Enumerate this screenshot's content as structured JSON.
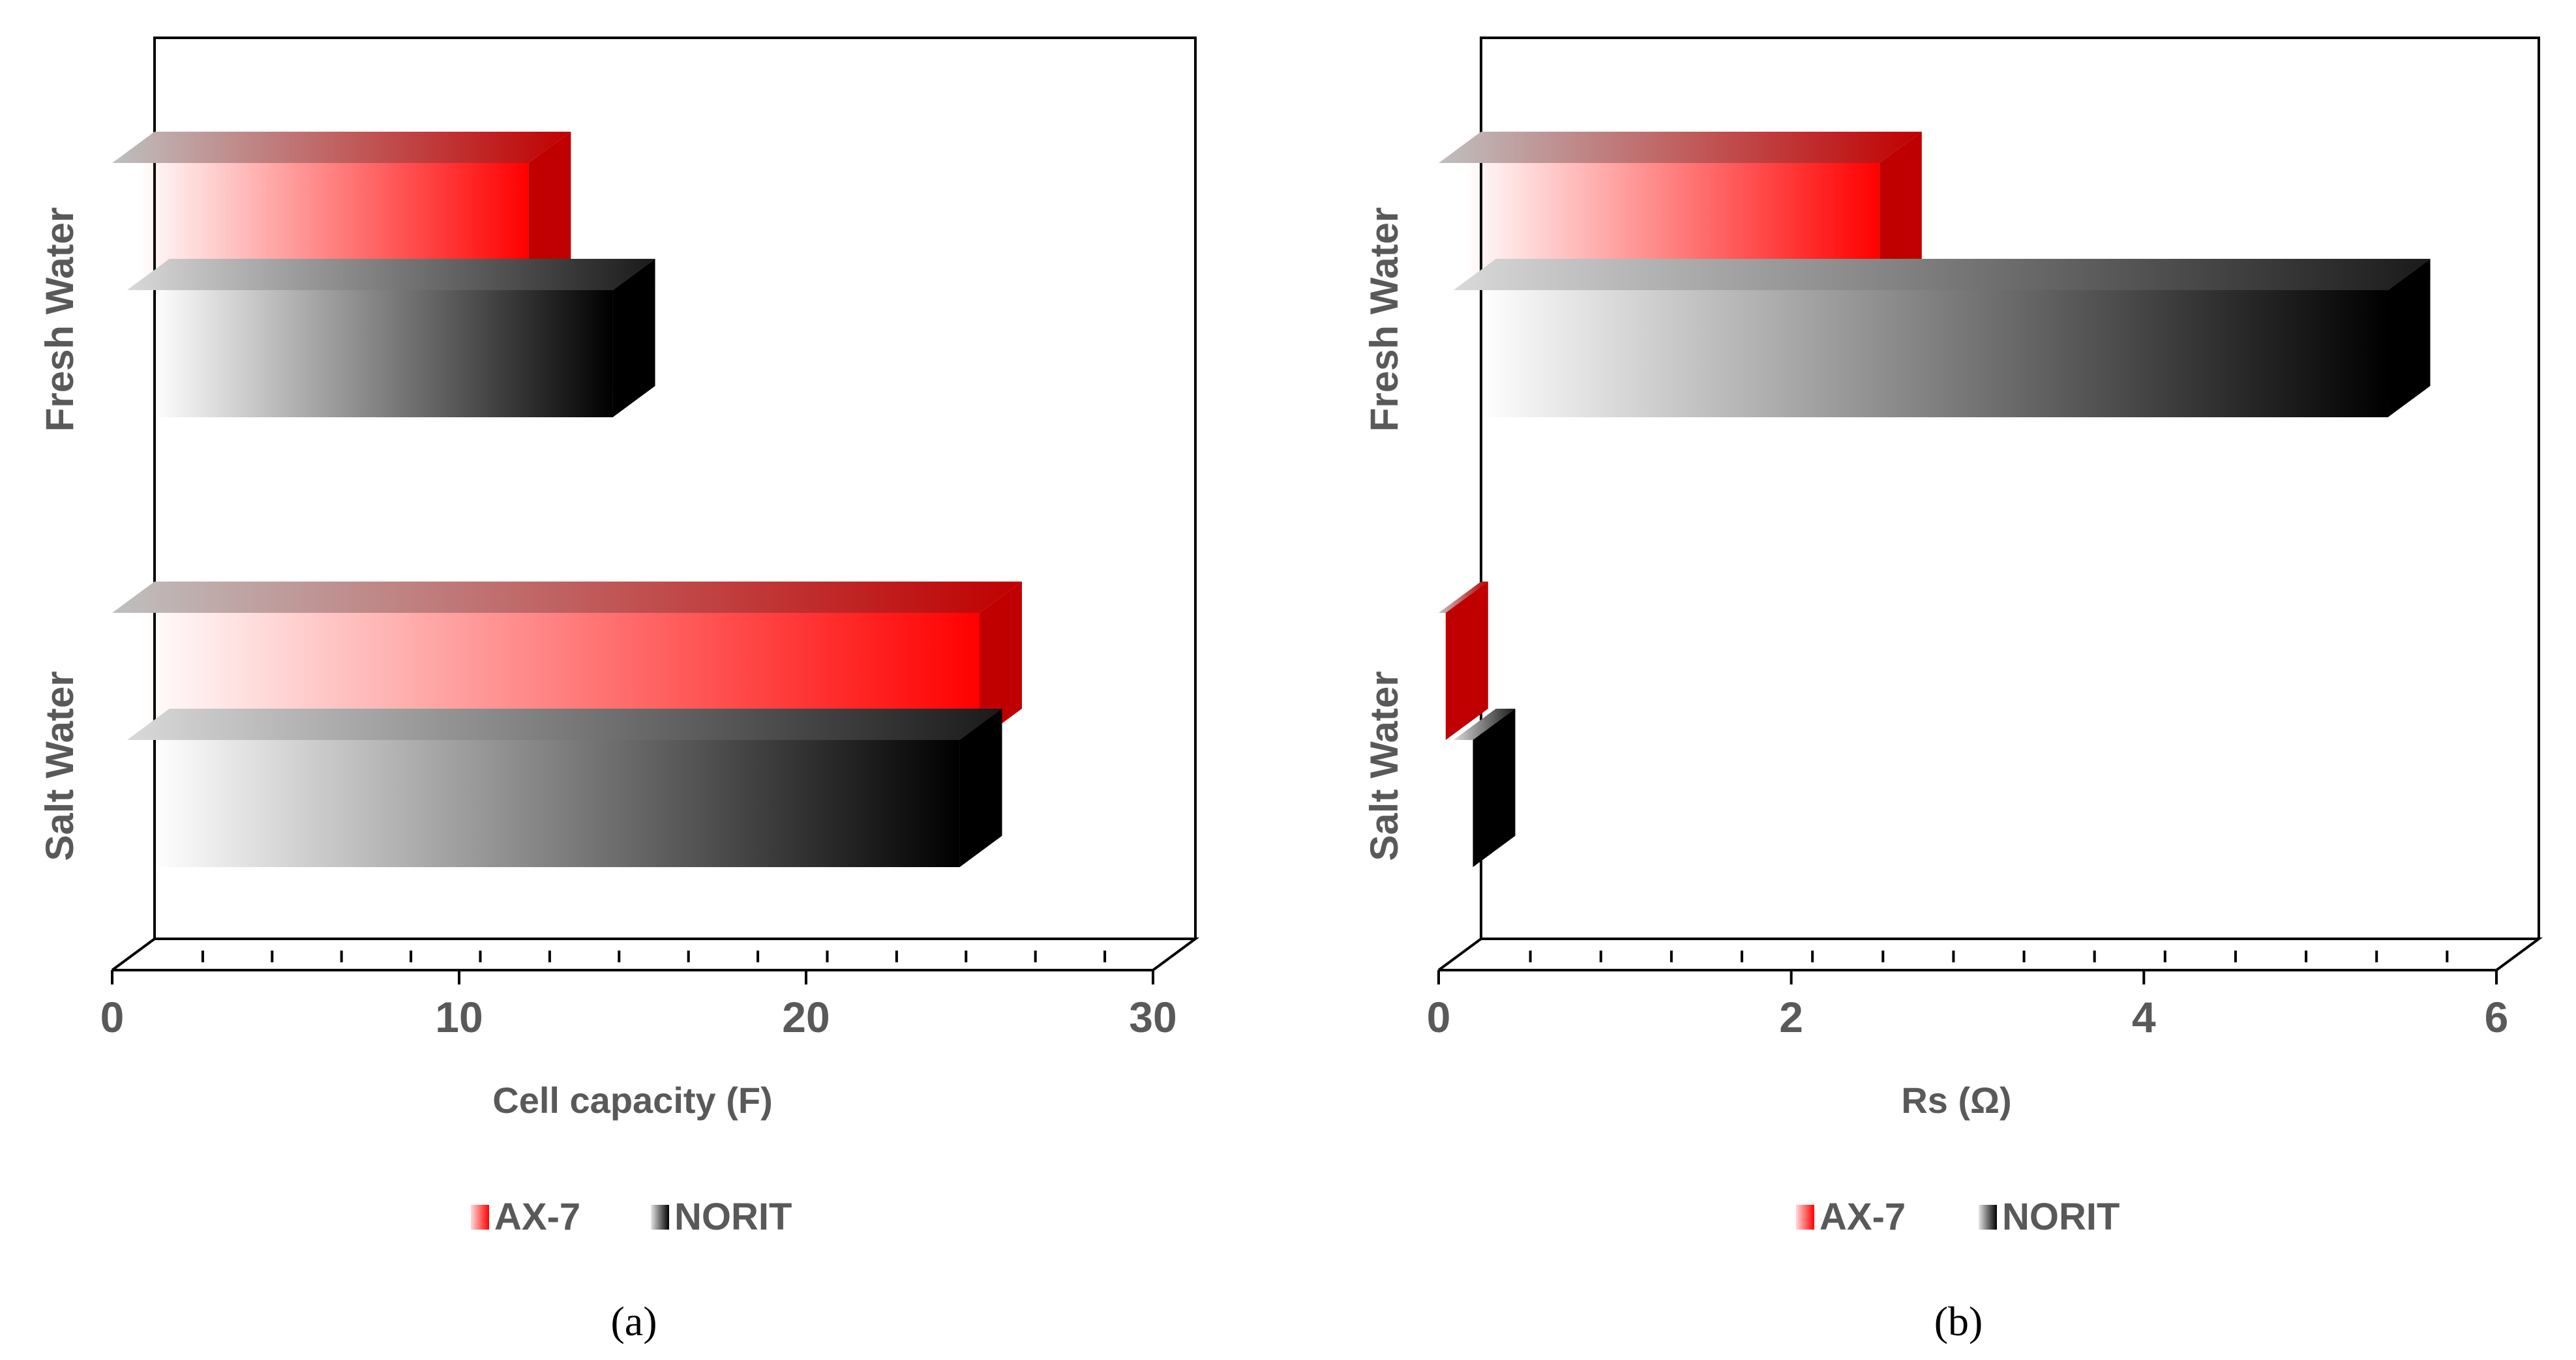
{
  "colors": {
    "ax7": "#ff0000",
    "ax7_side": "#c00000",
    "norit": "#000000",
    "axis": "#000000",
    "text": "#595959"
  },
  "chart_data": [
    {
      "type": "bar",
      "orientation": "horizontal",
      "panel_caption": "(a)",
      "categories": [
        "Fresh Water",
        "Salt Water"
      ],
      "series": [
        {
          "name": "AX-7",
          "values": [
            12,
            25
          ]
        },
        {
          "name": "NORIT",
          "values": [
            14,
            24
          ]
        }
      ],
      "xlabel": "Cell capacity (F)",
      "xlim": [
        0,
        30
      ],
      "major_ticks": [
        0,
        10,
        20,
        30
      ],
      "minor_step": 2,
      "tick_labels": [
        "0",
        "10",
        "20",
        "30"
      ],
      "legend": [
        "AX-7",
        "NORIT"
      ],
      "legend_position": "bottom"
    },
    {
      "type": "bar",
      "orientation": "horizontal",
      "panel_caption": "(b)",
      "categories": [
        "Fresh Water",
        "Salt Water"
      ],
      "series": [
        {
          "name": "AX-7",
          "values": [
            2.5,
            0.04
          ]
        },
        {
          "name": "NORIT",
          "values": [
            5.3,
            0.11
          ]
        }
      ],
      "xlabel": "Rs (Ω)",
      "xlim": [
        0,
        6
      ],
      "major_ticks": [
        0,
        2,
        4,
        6
      ],
      "minor_step": 0.4,
      "tick_labels": [
        "0",
        "2",
        "4",
        "6"
      ],
      "legend": [
        "AX-7",
        "NORIT"
      ],
      "legend_position": "bottom"
    }
  ]
}
